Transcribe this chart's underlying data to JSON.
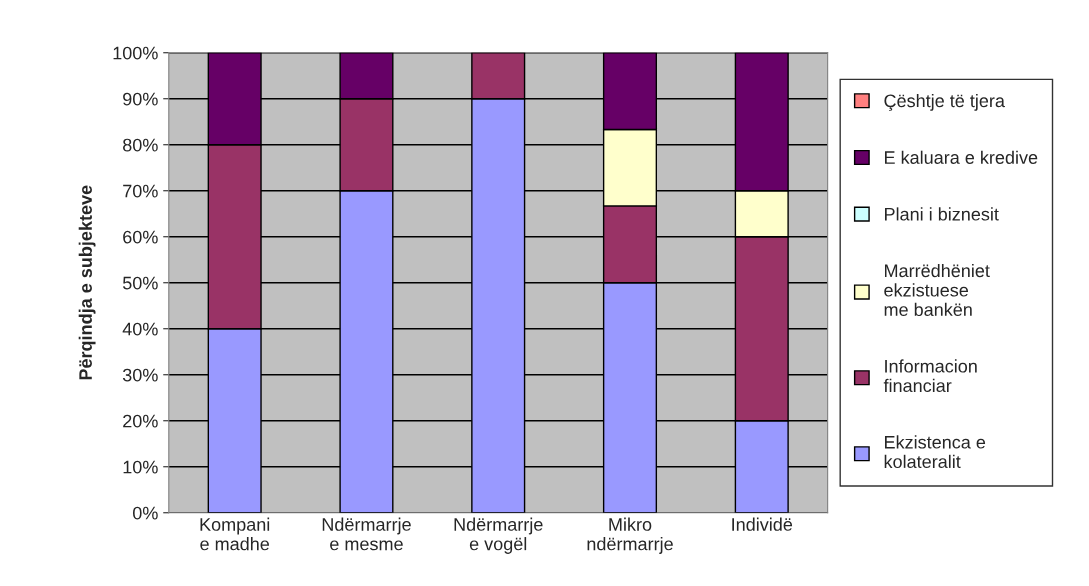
{
  "chart_data": {
    "type": "bar",
    "stacked": true,
    "ylabel": "Përqindja e subjekteve",
    "categories": [
      "Kompani\ne madhe",
      "Ndërmarrje\ne mesme",
      "Ndërmarrje\ne vogël",
      "Mikro\nndërmarrje",
      "Individë"
    ],
    "series": [
      {
        "name": "Ekzistenca e\nkolateralit",
        "color": "#9999ff",
        "values": [
          40,
          70,
          90,
          50,
          20
        ]
      },
      {
        "name": "Informacion\nfinanciar",
        "color": "#993366",
        "values": [
          40,
          20,
          10,
          16.7,
          40
        ]
      },
      {
        "name": "Marrëdhëniet\nekzistuese\nme bankën",
        "color": "#ffffcc",
        "values": [
          0,
          0,
          0,
          16.6,
          10
        ]
      },
      {
        "name": "Plani i biznesit",
        "color": "#ccffff",
        "values": [
          0,
          0,
          0,
          0,
          0
        ]
      },
      {
        "name": "E kaluara e kredive",
        "color": "#660066",
        "values": [
          20,
          10,
          0,
          16.7,
          30
        ]
      },
      {
        "name": "Çështje të tjera",
        "color": "#ff8080",
        "values": [
          0,
          0,
          0,
          0,
          0
        ]
      }
    ],
    "ylim": [
      0,
      100
    ],
    "yticks": [
      {
        "value": 0,
        "label": "0%"
      },
      {
        "value": 10,
        "label": "10%"
      },
      {
        "value": 20,
        "label": "20%"
      },
      {
        "value": 30,
        "label": "30%"
      },
      {
        "value": 40,
        "label": "40%"
      },
      {
        "value": 50,
        "label": "50%"
      },
      {
        "value": 60,
        "label": "60%"
      },
      {
        "value": 70,
        "label": "70%"
      },
      {
        "value": 80,
        "label": "80%"
      },
      {
        "value": 90,
        "label": "90%"
      },
      {
        "value": 100,
        "label": "100%"
      }
    ],
    "grid": "y",
    "legend": "right"
  }
}
